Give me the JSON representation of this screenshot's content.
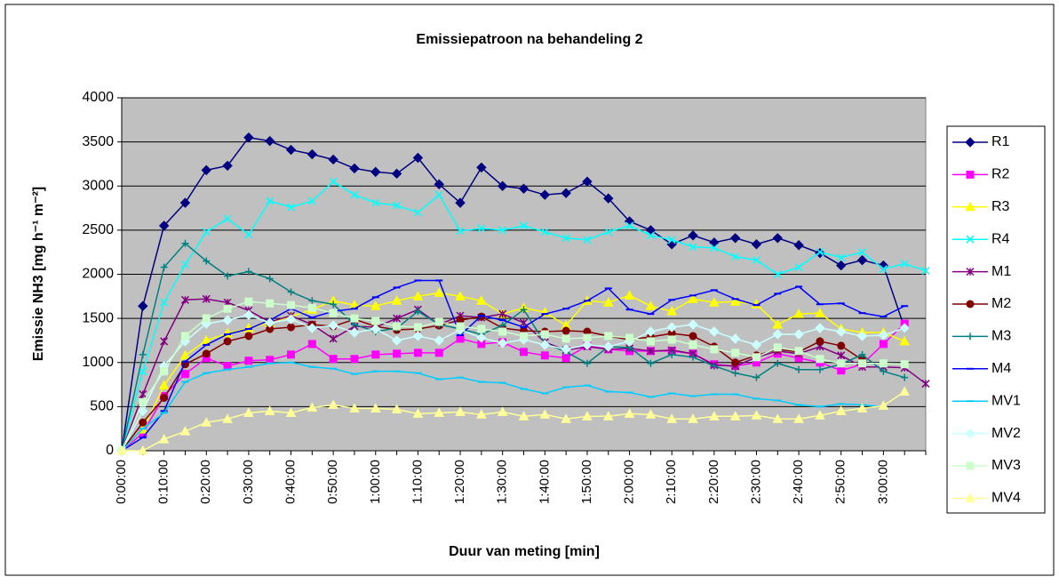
{
  "chart_data": {
    "type": "line",
    "title": "Emissiepatroon na behandeling  2",
    "x_label": "Duur van meting [min]",
    "y_label": "Emissie NH3 [mg h⁻¹ m⁻²]",
    "categories": [
      "0:00:00",
      null,
      "0:10:00",
      null,
      "0:20:00",
      null,
      "0:30:00",
      null,
      "0:40:00",
      null,
      "0:50:00",
      null,
      "1:00:00",
      null,
      "1:10:00",
      null,
      "1:20:00",
      null,
      "1:30:00",
      null,
      "1:40:00",
      null,
      "1:50:00",
      null,
      "2:00:00",
      null,
      "2:10:00",
      null,
      "2:20:00",
      null,
      "2:30:00",
      null,
      "2:40:00",
      null,
      "2:50:00",
      null,
      "3:00:00",
      null,
      null
    ],
    "ylim": [
      0,
      4000
    ],
    "yticks": [
      0,
      500,
      1000,
      1500,
      2000,
      2500,
      3000,
      3500,
      4000
    ],
    "grid": true,
    "legend": "right",
    "series": [
      {
        "name": "R1",
        "color": "#000080",
        "marker": "diamond",
        "values": [
          0,
          1640,
          2550,
          2810,
          3180,
          3230,
          3550,
          3510,
          3410,
          3360,
          3300,
          3200,
          3160,
          3140,
          3320,
          3020,
          2810,
          3210,
          3000,
          2970,
          2900,
          2920,
          3050,
          2860,
          2600,
          2500,
          2340,
          2440,
          2360,
          2410,
          2340,
          2410,
          2330,
          2240,
          2100,
          2160,
          2100,
          1390,
          null
        ]
      },
      {
        "name": "R2",
        "color": "#ff00ff",
        "marker": "square",
        "values": [
          0,
          200,
          620,
          870,
          1050,
          960,
          1020,
          1030,
          1090,
          1210,
          1040,
          1040,
          1090,
          1100,
          1110,
          1110,
          1270,
          1210,
          1230,
          1120,
          1080,
          1050,
          1190,
          1150,
          1130,
          1130,
          1130,
          1100,
          980,
          960,
          1000,
          1100,
          1050,
          1000,
          910,
          980,
          1210,
          1440,
          null
        ]
      },
      {
        "name": "R3",
        "color": "#ffff00",
        "marker": "triangle",
        "values": [
          0,
          240,
          740,
          1080,
          1250,
          1330,
          1390,
          1450,
          1520,
          1600,
          1700,
          1650,
          1640,
          1700,
          1750,
          1790,
          1750,
          1700,
          1550,
          1620,
          1570,
          1420,
          1700,
          1680,
          1760,
          1640,
          1580,
          1720,
          1680,
          1690,
          1660,
          1430,
          1550,
          1560,
          1380,
          1340,
          1340,
          1240,
          null
        ]
      },
      {
        "name": "R4",
        "color": "#00ffff",
        "marker": "x",
        "values": [
          0,
          900,
          1680,
          2110,
          2480,
          2630,
          2450,
          2830,
          2760,
          2830,
          3050,
          2900,
          2810,
          2780,
          2700,
          2900,
          2490,
          2520,
          2500,
          2550,
          2480,
          2410,
          2390,
          2480,
          2550,
          2440,
          2390,
          2310,
          2300,
          2200,
          2160,
          2000,
          2080,
          2250,
          2190,
          2250,
          2060,
          2120,
          2040
        ]
      },
      {
        "name": "M1",
        "color": "#800080",
        "marker": "asterisk",
        "values": [
          0,
          640,
          1240,
          1710,
          1720,
          1680,
          1590,
          1460,
          1530,
          1430,
          1270,
          1410,
          1400,
          1500,
          1600,
          1430,
          1530,
          1510,
          1550,
          1450,
          1230,
          1140,
          1180,
          1150,
          1160,
          1130,
          1140,
          1100,
          970,
          960,
          1060,
          1130,
          1100,
          1180,
          1080,
          950,
          950,
          940,
          760
        ]
      },
      {
        "name": "M2",
        "color": "#800000",
        "marker": "circle",
        "values": [
          0,
          320,
          600,
          980,
          1100,
          1240,
          1300,
          1380,
          1400,
          1430,
          1410,
          1490,
          1410,
          1370,
          1380,
          1420,
          1480,
          1520,
          1390,
          1360,
          1350,
          1360,
          1350,
          1300,
          1260,
          1290,
          1330,
          1300,
          1180,
          1000,
          1080,
          1150,
          1120,
          1240,
          1190,
          1030,
          null,
          null,
          null
        ]
      },
      {
        "name": "M3",
        "color": "#008080",
        "marker": "plus",
        "values": [
          0,
          1090,
          2080,
          2350,
          2150,
          1980,
          2030,
          1950,
          1800,
          1700,
          1660,
          1430,
          1350,
          1390,
          1580,
          1430,
          1380,
          1320,
          1420,
          1600,
          1220,
          1120,
          990,
          1180,
          1170,
          990,
          1090,
          1060,
          960,
          880,
          830,
          990,
          920,
          920,
          980,
          1090,
          900,
          830,
          null
        ]
      },
      {
        "name": "M4",
        "color": "#0000ff",
        "marker": "dash",
        "values": [
          0,
          150,
          450,
          1010,
          1200,
          1320,
          1380,
          1480,
          1610,
          1510,
          1580,
          1610,
          1740,
          1850,
          1930,
          1930,
          1310,
          1530,
          1480,
          1400,
          1550,
          1610,
          1700,
          1840,
          1600,
          1550,
          1710,
          1760,
          1820,
          1720,
          1650,
          1780,
          1860,
          1660,
          1670,
          1560,
          1520,
          1640,
          null
        ]
      },
      {
        "name": "MV1",
        "color": "#00ccff",
        "marker": "dash",
        "values": [
          0,
          250,
          430,
          780,
          880,
          920,
          950,
          990,
          1000,
          950,
          930,
          870,
          900,
          900,
          880,
          810,
          830,
          780,
          770,
          700,
          650,
          720,
          740,
          670,
          660,
          610,
          650,
          620,
          640,
          640,
          590,
          570,
          520,
          500,
          530,
          520,
          500,
          null,
          null
        ]
      },
      {
        "name": "MV2",
        "color": "#ccffff",
        "marker": "diamond",
        "values": [
          0,
          450,
          960,
          1240,
          1440,
          1480,
          1540,
          1450,
          1490,
          1390,
          1420,
          1340,
          1380,
          1250,
          1300,
          1250,
          1370,
          1280,
          1220,
          1260,
          1200,
          1150,
          1200,
          1180,
          1240,
          1350,
          1400,
          1430,
          1350,
          1270,
          1200,
          1320,
          1320,
          1390,
          1350,
          1300,
          1310,
          1390,
          null
        ]
      },
      {
        "name": "MV3",
        "color": "#ccffcc",
        "marker": "square",
        "values": [
          0,
          550,
          900,
          1300,
          1500,
          1610,
          1690,
          1670,
          1650,
          1620,
          1560,
          1500,
          1470,
          1410,
          1400,
          1460,
          1410,
          1380,
          1350,
          1300,
          1320,
          1270,
          1280,
          1300,
          1280,
          1240,
          1260,
          1200,
          1150,
          1110,
          1060,
          1170,
          1130,
          1040,
          990,
          990,
          990,
          980,
          null
        ]
      },
      {
        "name": "MV4",
        "color": "#ffff99",
        "marker": "triangle",
        "values": [
          0,
          0,
          130,
          220,
          320,
          360,
          430,
          450,
          430,
          490,
          520,
          480,
          480,
          470,
          420,
          430,
          440,
          410,
          440,
          390,
          410,
          360,
          390,
          390,
          420,
          410,
          360,
          360,
          390,
          390,
          400,
          360,
          360,
          400,
          450,
          480,
          510,
          670,
          null
        ]
      }
    ]
  }
}
